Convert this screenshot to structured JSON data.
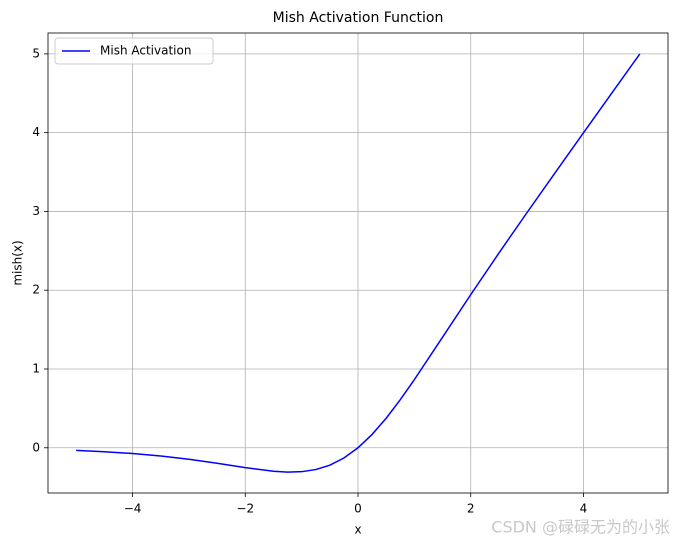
{
  "chart_data": {
    "type": "line",
    "title": "Mish Activation Function",
    "x_label": "x",
    "y_label": "mish(x)",
    "x": [
      -5,
      -4.5,
      -4,
      -3.5,
      -3,
      -2.5,
      -2,
      -1.5,
      -1.25,
      -1,
      -0.75,
      -0.5,
      -0.25,
      0,
      0.25,
      0.5,
      0.75,
      1,
      1.5,
      2,
      2.5,
      3,
      3.5,
      4,
      4.5,
      5
    ],
    "series": [
      {
        "name": "Mish Activation",
        "color": "#0000ff",
        "values": [
          -0.0336,
          -0.0497,
          -0.0726,
          -0.1041,
          -0.1456,
          -0.1968,
          -0.2525,
          -0.2981,
          -0.3084,
          -0.3034,
          -0.2765,
          -0.2207,
          -0.1299,
          0,
          0.1696,
          0.3752,
          0.61,
          0.8651,
          1.4034,
          1.944,
          2.4714,
          2.9865,
          3.494,
          3.9974,
          4.4989,
          4.9996
        ]
      }
    ],
    "xlim": [
      -5.5,
      5.5
    ],
    "ylim": [
      -0.574,
      5.265
    ],
    "xticks": [
      {
        "value": -4,
        "label": "−4"
      },
      {
        "value": -2,
        "label": "−2"
      },
      0,
      2,
      4
    ],
    "yticks": [
      0,
      1,
      2,
      3,
      4,
      5
    ],
    "grid": true,
    "legend": "upper-left",
    "watermark": "CSDN @碌碌无为的小张"
  }
}
